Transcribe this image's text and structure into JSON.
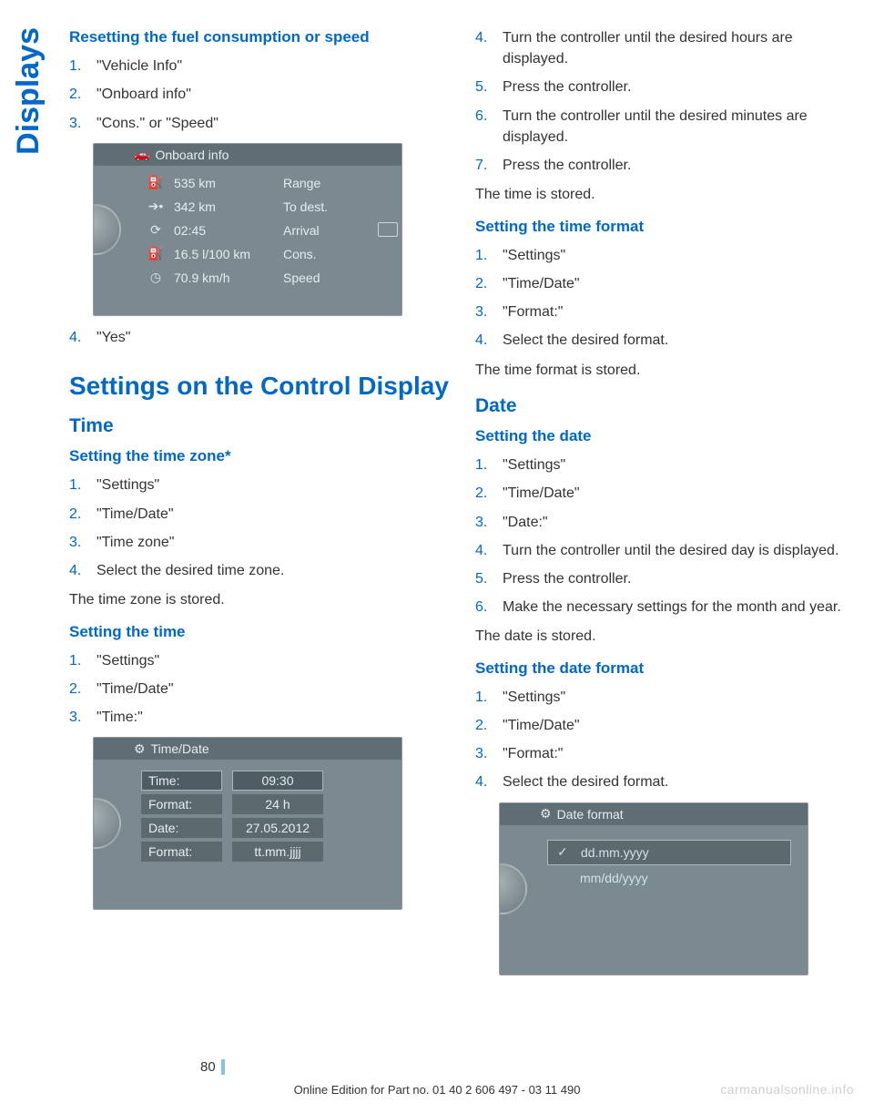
{
  "sidebar_label": "Displays",
  "left": {
    "h3a": "Resetting the fuel consumption or speed",
    "list1": [
      "\"Vehicle Info\"",
      "\"Onboard info\"",
      "\"Cons.\" or \"Speed\""
    ],
    "screen1": {
      "title": "Onboard info",
      "rows": [
        {
          "icon": "⛽",
          "v1": "535 km",
          "v2": "Range"
        },
        {
          "icon": "➔•",
          "v1": "342 km",
          "v2": "To dest."
        },
        {
          "icon": "⟳",
          "v1": "02:45",
          "v2": "Arrival"
        },
        {
          "icon": "⛽",
          "v1": "16.5 l/100 km",
          "v2": "Cons."
        },
        {
          "icon": "◷",
          "v1": "70.9 km/h",
          "v2": "Speed"
        }
      ]
    },
    "list1b": [
      "\"Yes\""
    ],
    "h1": "Settings on the Control Display",
    "h2_time": "Time",
    "h3_tz": "Setting the time zone*",
    "list_tz": [
      "\"Settings\"",
      "\"Time/Date\"",
      "\"Time zone\"",
      "Select the desired time zone."
    ],
    "p_tz": "The time zone is stored.",
    "h3_time": "Setting the time",
    "list_time": [
      "\"Settings\"",
      "\"Time/Date\"",
      "\"Time:\""
    ],
    "screen2": {
      "title": "Time/Date",
      "rows": [
        {
          "label": "Time:",
          "val": "09:30",
          "sel": true
        },
        {
          "label": "Format:",
          "val": "24 h"
        },
        {
          "label": "Date:",
          "val": "27.05.2012"
        },
        {
          "label": "Format:",
          "val": "tt.mm.jjjj"
        }
      ]
    }
  },
  "right": {
    "list_cont": [
      "Turn the controller until the desired hours are displayed.",
      "Press the controller.",
      "Turn the controller until the desired minutes are displayed.",
      "Press the controller."
    ],
    "list_cont_start": 4,
    "p_time_stored": "The time is stored.",
    "h3_tf": "Setting the time format",
    "list_tf": [
      "\"Settings\"",
      "\"Time/Date\"",
      "\"Format:\"",
      "Select the desired format."
    ],
    "p_tf": "The time format is stored.",
    "h2_date": "Date",
    "h3_sd": "Setting the date",
    "list_sd": [
      "\"Settings\"",
      "\"Time/Date\"",
      "\"Date:\"",
      "Turn the controller until the desired day is displayed.",
      "Press the controller.",
      "Make the necessary settings for the month and year."
    ],
    "p_sd": "The date is stored.",
    "h3_df": "Setting the date format",
    "list_df": [
      "\"Settings\"",
      "\"Time/Date\"",
      "\"Format:\"",
      "Select the desired format."
    ],
    "screen3": {
      "title": "Date format",
      "rows": [
        {
          "label": "dd.mm.yyyy",
          "sel": true
        },
        {
          "label": "mm/dd/yyyy"
        }
      ]
    }
  },
  "page_num": "80",
  "footer": "Online Edition for Part no. 01 40 2 606 497 - 03 11 490",
  "watermark": "carmanualsonline.info"
}
